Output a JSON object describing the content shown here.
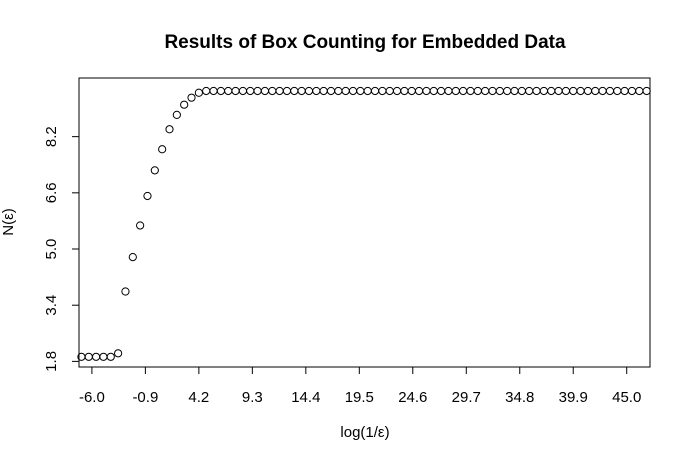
{
  "chart_data": {
    "type": "scatter",
    "title": "Results of Box Counting for Embedded Data",
    "xlabel": "log(1/ε)",
    "ylabel": "N(ε)",
    "xlim": [
      -7.23,
      47.22
    ],
    "ylim": [
      1.64,
      9.87
    ],
    "x_ticks": [
      -6.0,
      -0.9,
      4.2,
      9.3,
      14.4,
      19.5,
      24.6,
      29.7,
      34.8,
      39.9,
      45.0
    ],
    "x_tick_labels": [
      "-6.0",
      "-0.9",
      "4.2",
      "9.3",
      "14.4",
      "19.5",
      "24.6",
      "29.7",
      "34.8",
      "39.9",
      "45.0"
    ],
    "y_ticks": [
      1.8,
      3.4,
      5.0,
      6.6,
      8.2
    ],
    "y_tick_labels": [
      "1.8",
      "3.4",
      "5.0",
      "6.6",
      "8.2"
    ],
    "grid": false,
    "marker": "open-circle",
    "series": [
      {
        "x": [
          -7.0,
          -6.3,
          -5.6,
          -4.9,
          -4.2,
          -3.5,
          -2.8,
          -2.1,
          -1.4,
          -0.7,
          0.0,
          0.7,
          1.4,
          2.1,
          2.8,
          3.5,
          4.2,
          4.9,
          5.6,
          6.3,
          7.0,
          7.7,
          8.4,
          9.1,
          9.8,
          10.5,
          11.2,
          11.9,
          12.6,
          13.3,
          14.0,
          14.7,
          15.4,
          16.1,
          16.8,
          17.5,
          18.2,
          18.9,
          19.6,
          20.3,
          21.0,
          21.7,
          22.4,
          23.1,
          23.8,
          24.5,
          25.2,
          25.9,
          26.6,
          27.3,
          28.0,
          28.7,
          29.4,
          30.1,
          30.8,
          31.5,
          32.2,
          32.9,
          33.6,
          34.3,
          35.0,
          35.7,
          36.4,
          37.1,
          37.8,
          38.5,
          39.2,
          39.9,
          40.6,
          41.3,
          42.0,
          42.7,
          43.4,
          44.1,
          44.8,
          45.5,
          46.2,
          46.9
        ],
        "y": [
          1.93,
          1.93,
          1.93,
          1.93,
          1.93,
          2.03,
          3.79,
          4.77,
          5.67,
          6.51,
          7.24,
          7.84,
          8.41,
          8.82,
          9.11,
          9.31,
          9.45,
          9.5,
          9.5,
          9.5,
          9.5,
          9.5,
          9.5,
          9.5,
          9.5,
          9.5,
          9.5,
          9.5,
          9.5,
          9.5,
          9.5,
          9.5,
          9.5,
          9.5,
          9.5,
          9.5,
          9.5,
          9.5,
          9.5,
          9.5,
          9.5,
          9.5,
          9.5,
          9.5,
          9.5,
          9.5,
          9.5,
          9.5,
          9.5,
          9.5,
          9.5,
          9.5,
          9.5,
          9.5,
          9.5,
          9.5,
          9.5,
          9.5,
          9.5,
          9.5,
          9.5,
          9.5,
          9.5,
          9.5,
          9.5,
          9.5,
          9.5,
          9.5,
          9.5,
          9.5,
          9.5,
          9.5,
          9.5,
          9.5,
          9.5,
          9.5,
          9.5,
          9.5
        ]
      }
    ]
  }
}
